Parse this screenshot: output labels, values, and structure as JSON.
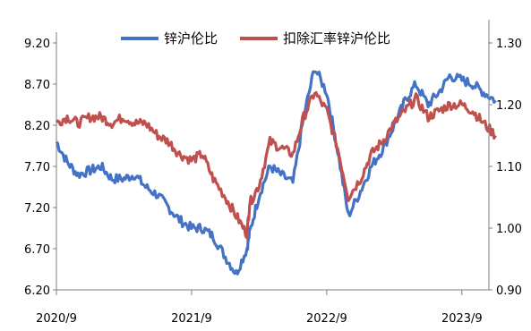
{
  "chart_data": {
    "type": "line",
    "x_axis": {
      "tick_labels": [
        "2020/9",
        "2021/9",
        "2022/9",
        "2023/9"
      ],
      "range": [
        "2020/9",
        "2023/12"
      ]
    },
    "y_left": {
      "ticks": [
        "9.20",
        "8.70",
        "8.20",
        "7.70",
        "7.20",
        "6.70",
        "6.20"
      ],
      "range": [
        6.2,
        9.2
      ]
    },
    "y_right": {
      "ticks": [
        "1.30",
        "1.20",
        "1.10",
        "1.00",
        "0.90"
      ],
      "range": [
        0.9,
        1.3
      ]
    },
    "grid": false,
    "legend_position": "top",
    "series": [
      {
        "name": "锌沪伦比",
        "axis": "left",
        "color": "#4472C4",
        "t": [
          2020.67,
          2020.75,
          2020.83,
          2020.92,
          2021.0,
          2021.08,
          2021.17,
          2021.25,
          2021.33,
          2021.42,
          2021.5,
          2021.58,
          2021.67,
          2021.75,
          2021.83,
          2021.92,
          2022.0,
          2022.08,
          2022.1,
          2022.17,
          2022.25,
          2022.33,
          2022.42,
          2022.5,
          2022.58,
          2022.67,
          2022.75,
          2022.83,
          2022.92,
          2023.0,
          2023.08,
          2023.17,
          2023.25,
          2023.33,
          2023.42,
          2023.5,
          2023.58,
          2023.67,
          2023.75,
          2023.83,
          2023.92
        ],
        "values": [
          8.0,
          7.75,
          7.6,
          7.65,
          7.7,
          7.55,
          7.55,
          7.6,
          7.45,
          7.35,
          7.2,
          7.05,
          6.95,
          6.95,
          6.85,
          6.6,
          6.4,
          6.7,
          6.9,
          7.35,
          7.7,
          7.6,
          7.5,
          8.3,
          8.9,
          8.6,
          7.9,
          7.1,
          7.4,
          7.7,
          7.9,
          8.2,
          8.5,
          8.7,
          8.45,
          8.6,
          8.8,
          8.75,
          8.7,
          8.6,
          8.5
        ]
      },
      {
        "name": "扣除汇率锌沪伦比",
        "axis": "right",
        "color": "#C0504D",
        "t": [
          2020.67,
          2020.75,
          2020.83,
          2020.92,
          2021.0,
          2021.08,
          2021.17,
          2021.25,
          2021.33,
          2021.42,
          2021.5,
          2021.58,
          2021.67,
          2021.75,
          2021.83,
          2021.92,
          2022.0,
          2022.08,
          2022.1,
          2022.17,
          2022.25,
          2022.33,
          2022.42,
          2022.5,
          2022.58,
          2022.67,
          2022.75,
          2022.83,
          2022.92,
          2023.0,
          2023.08,
          2023.17,
          2023.25,
          2023.33,
          2023.42,
          2023.5,
          2023.58,
          2023.67,
          2023.75,
          2023.83,
          2023.92
        ],
        "values": [
          1.17,
          1.18,
          1.17,
          1.18,
          1.18,
          1.17,
          1.18,
          1.17,
          1.17,
          1.15,
          1.14,
          1.12,
          1.11,
          1.12,
          1.08,
          1.05,
          1.02,
          0.99,
          1.04,
          1.07,
          1.14,
          1.13,
          1.12,
          1.18,
          1.22,
          1.19,
          1.13,
          1.05,
          1.08,
          1.12,
          1.14,
          1.17,
          1.19,
          1.21,
          1.18,
          1.19,
          1.2,
          1.2,
          1.19,
          1.17,
          1.15
        ]
      }
    ]
  }
}
